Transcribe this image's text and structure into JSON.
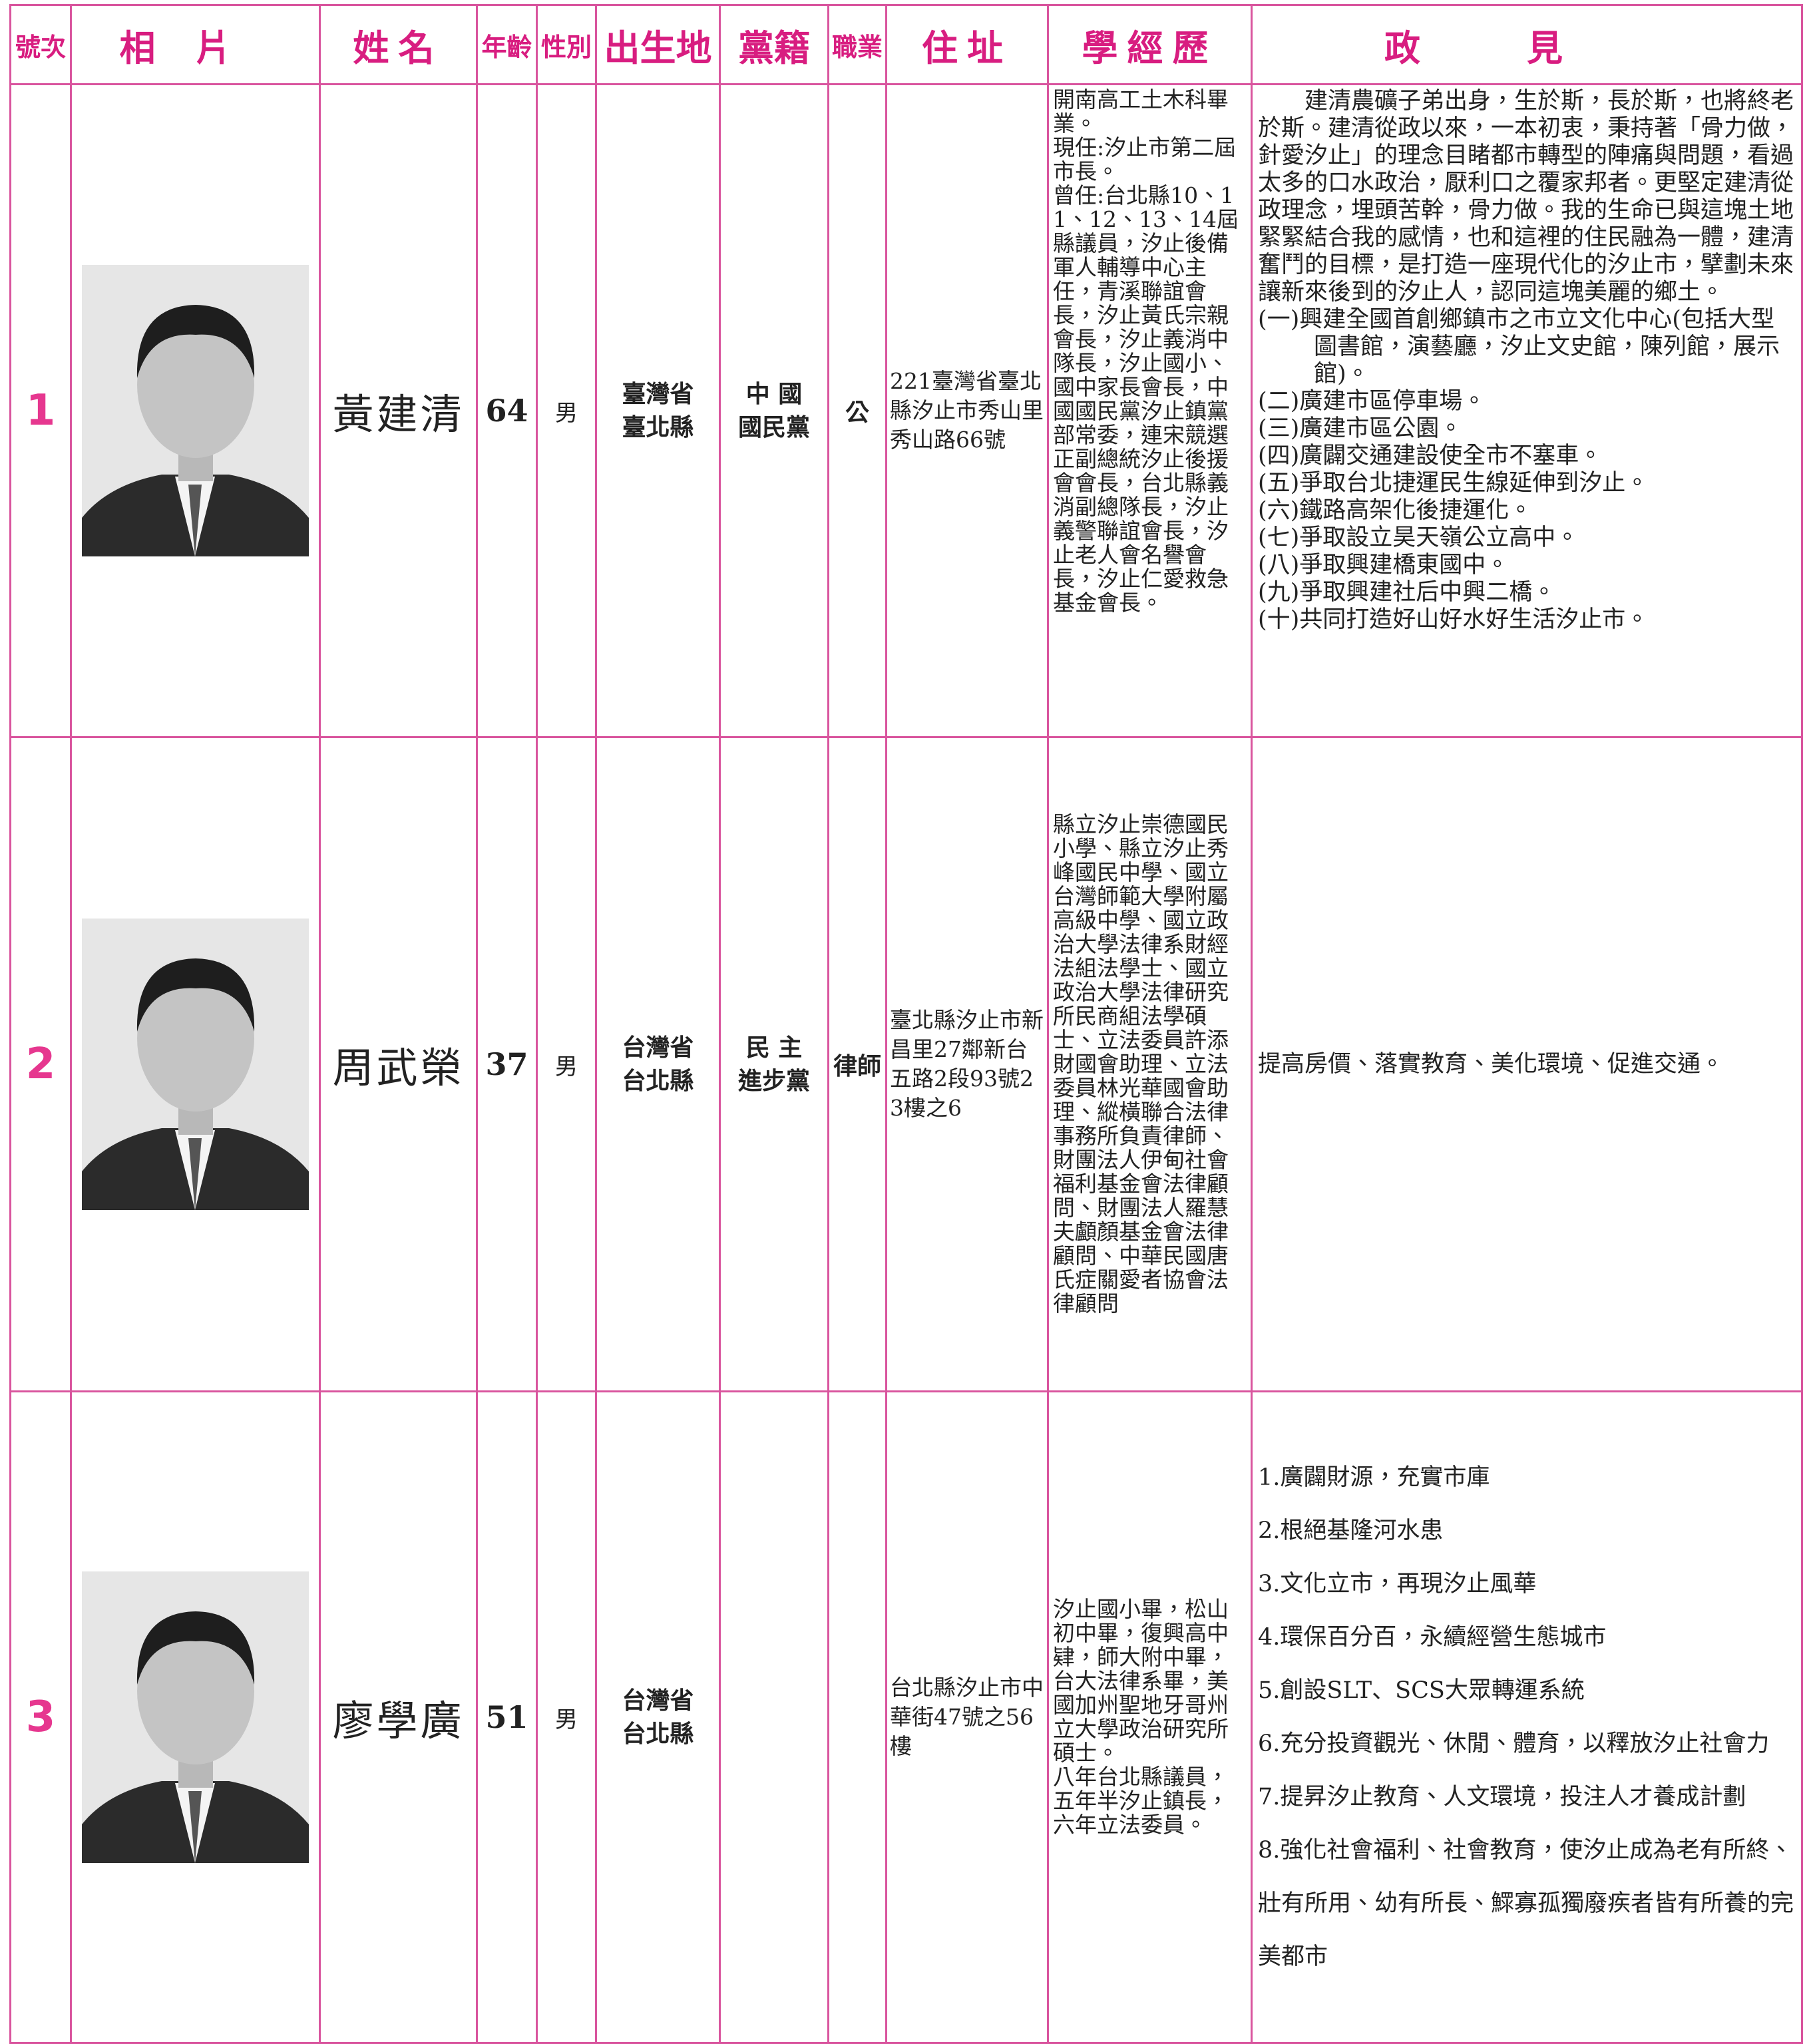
{
  "header": {
    "columns": [
      "號次",
      "相片",
      "姓名",
      "年齡",
      "性別",
      "出生地",
      "黨籍",
      "職業",
      "住址",
      "學經歷",
      "政見"
    ]
  },
  "candidates": [
    {
      "number": "1",
      "name": "黃建清",
      "age": 64,
      "sex": "男",
      "birthplace": [
        "臺灣省",
        "臺北縣"
      ],
      "party": [
        "中 國",
        "國民黨"
      ],
      "occupation": "公",
      "address": "221臺灣省臺北縣汐止市秀山里秀山路66號",
      "experience": [
        "開南高工土木科畢業。",
        "現任:汐止市第二屆市長。",
        "曾任:台北縣10、11、12、13、14屆縣議員，汐止後備軍人輔導中心主任，青溪聯誼會長，汐止黃氏宗親會長，汐止義消中隊長，汐止國小、國中家長會長，中國國民黨汐止鎮黨部常委，連宋競選正副總統汐止後援會會長，台北縣義消副總隊長，汐止義警聯誼會長，汐止老人會名譽會長，汐止仁愛救急基金會長。"
      ],
      "platform_intro": "建清農礦子弟出身，生於斯，長於斯，也將終老於斯。建清從政以來，一本初衷，秉持著「骨力做，針愛汐止」的理念目睹都市轉型的陣痛與問題，看過太多的口水政治，厭利口之覆家邦者。更堅定建清從政理念，埋頭苦幹，骨力做。我的生命已與這塊土地緊緊結合我的感情，也和這裡的住民融為一體，建清奮鬥的目標，是打造一座現代化的汐止市，擘劃未來讓新來後到的汐止人，認同這塊美麗的鄉土。",
      "platform": [
        "(一)興建全國首創鄉鎮市之市立文化中心(包括大型圖書館，演藝廳，汐止文史館，陳列館，展示館)。",
        "(二)廣建市區停車場。",
        "(三)廣建市區公園。",
        "(四)廣闢交通建設使全市不塞車。",
        "(五)爭取台北捷運民生線延伸到汐止。",
        "(六)鐵路高架化後捷運化。",
        "(七)爭取設立昊天嶺公立高中。",
        "(八)爭取興建橋東國中。",
        "(九)爭取興建社后中興二橋。",
        "(十)共同打造好山好水好生活汐止市。"
      ]
    },
    {
      "number": "2",
      "name": "周武榮",
      "age": 37,
      "sex": "男",
      "birthplace": [
        "台灣省",
        "台北縣"
      ],
      "party": [
        "民 主",
        "進步黨"
      ],
      "occupation": "律師",
      "address": "臺北縣汐止市新昌里27鄰新台五路2段93號23樓之6",
      "experience": [
        "縣立汐止崇德國民小學、縣立汐止秀峰國民中學、國立台灣師範大學附屬高級中學、國立政治大學法律系財經法組法學士、國立政治大學法律研究所民商組法學碩士、立法委員許添財國會助理、立法委員林光華國會助理、縱橫聯合法律事務所負責律師、財團法人伊甸社會福利基金會法律顧問、財團法人羅慧夫顱顏基金會法律顧問、中華民國唐氏症關愛者協會法律顧問"
      ],
      "platform": [
        "提高房價、落實教育、美化環境、促進交通。"
      ]
    },
    {
      "number": "3",
      "name": "廖學廣",
      "age": 51,
      "sex": "男",
      "birthplace": [
        "台灣省",
        "台北縣"
      ],
      "address": "台北縣汐止市中華街47號之56樓",
      "experience": [
        "汐止國小畢，松山初中畢，復興高中肄，師大附中畢，台大法律系畢，美國加州聖地牙哥州立大學政治研究所碩士。",
        "八年台北縣議員，五年半汐止鎮長，六年立法委員。"
      ],
      "platform": [
        "1.廣闢財源，充實市庫",
        "2.根絕基隆河水患",
        "3.文化立市，再現汐止風華",
        "4.環保百分百，永續經營生態城市",
        "5.創設SLT、SCS大眾轉運系統",
        "6.充分投資觀光、休閒、體育，以釋放汐止社會力",
        "7.提昇汐止教育、人文環境，投注人才養成計劃",
        "8.強化社會福利、社會教育，使汐止成為老有所終、壯有所用、幼有所長、鰥寡孤獨廢疾者皆有所養的完美都市"
      ]
    }
  ]
}
